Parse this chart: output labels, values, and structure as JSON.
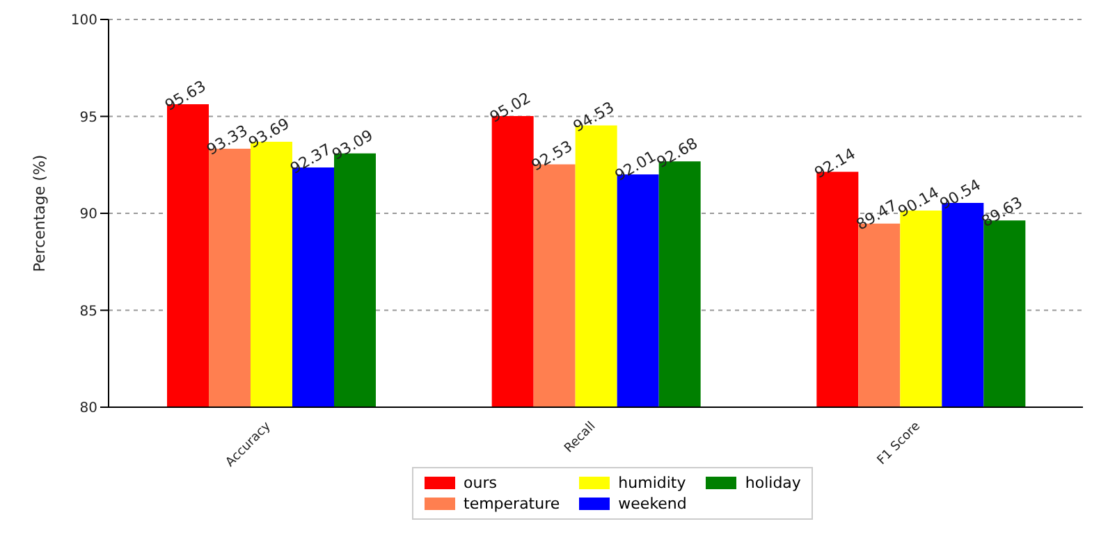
{
  "chart_data": {
    "type": "bar",
    "ylabel": "Percentage (%)",
    "categories": [
      "Accuracy",
      "Recall",
      "F1 Score"
    ],
    "series": [
      {
        "name": "ours",
        "color": "#ff0000",
        "values": [
          95.63,
          95.02,
          92.14
        ]
      },
      {
        "name": "temperature",
        "color": "#ff7f50",
        "values": [
          93.33,
          92.53,
          89.47
        ]
      },
      {
        "name": "humidity",
        "color": "#ffff00",
        "values": [
          93.69,
          94.53,
          90.14
        ]
      },
      {
        "name": "weekend",
        "color": "#0000ff",
        "values": [
          92.37,
          92.01,
          90.54
        ]
      },
      {
        "name": "holiday",
        "color": "#008000",
        "values": [
          93.09,
          92.68,
          89.63
        ]
      }
    ],
    "ylim": [
      80,
      100
    ],
    "yticks": [
      80,
      85,
      90,
      95,
      100
    ],
    "grid": "y",
    "legend": "bottom",
    "data_labels": true
  }
}
